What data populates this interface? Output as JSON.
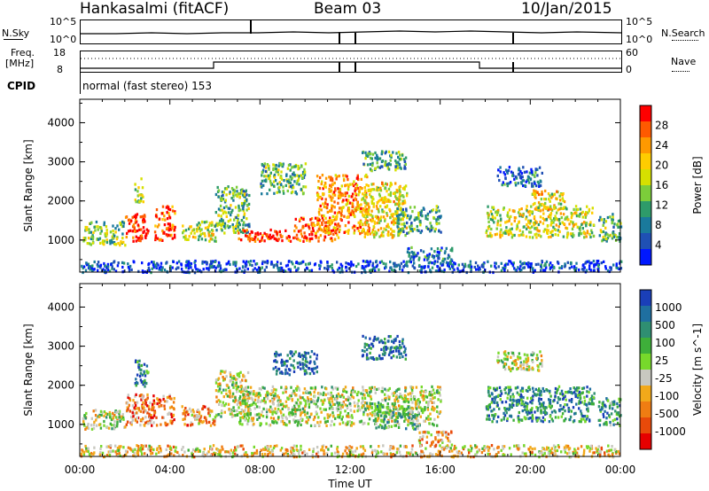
{
  "header": {
    "station": "Hankasalmi (fitACF)",
    "beam": "Beam 03",
    "date": "10/Jan/2015"
  },
  "status_panels": {
    "nsky_label": "N.Sky",
    "nsearch_label": "N.Search",
    "freq_label_1": "Freq.",
    "freq_label_2": "[MHz]",
    "nave_label": "Nave",
    "cpid_label": "CPID",
    "cpid_value": "normal (fast stereo) 153",
    "noise_ticks_left": [
      "10^5",
      "10^0"
    ],
    "noise_ticks_right": [
      "10^5",
      "10^0"
    ],
    "freq_ticks": [
      "18",
      "8"
    ],
    "nave_ticks": [
      "60",
      "0"
    ]
  },
  "chart_data": [
    {
      "type": "heatmap",
      "name": "power",
      "ylabel": "Slant Range [km]",
      "yticks": [
        "1000",
        "2000",
        "3000",
        "4000"
      ],
      "ylim": [
        180,
        4600
      ],
      "xlim": [
        0,
        24
      ],
      "colorbar": {
        "label": "Power [dB]",
        "ticks": [
          "28",
          "24",
          "20",
          "16",
          "12",
          "8",
          "4"
        ],
        "colors": [
          "#ff0000",
          "#ff5a00",
          "#ff9900",
          "#ffcc00",
          "#d6e000",
          "#7ccd3a",
          "#2e9b6a",
          "#1a7a9c",
          "#1f50b4",
          "#0018ff"
        ]
      },
      "scatter_bands": [
        {
          "t0": 0.1,
          "t1": 2.0,
          "r0": 900,
          "r1": 1500,
          "level": 0.45
        },
        {
          "t0": 2.0,
          "t1": 3.0,
          "r0": 1000,
          "r1": 1700,
          "level": 0.95
        },
        {
          "t0": 3.3,
          "t1": 4.2,
          "r0": 1000,
          "r1": 1900,
          "level": 0.9
        },
        {
          "t0": 2.4,
          "t1": 2.8,
          "r0": 2000,
          "r1": 2600,
          "level": 0.5
        },
        {
          "t0": 4.5,
          "t1": 6.0,
          "r0": 1000,
          "r1": 1500,
          "level": 0.55
        },
        {
          "t0": 6.0,
          "t1": 7.5,
          "r0": 1200,
          "r1": 2400,
          "level": 0.4
        },
        {
          "t0": 7.0,
          "t1": 9.5,
          "r0": 1000,
          "r1": 1300,
          "level": 0.9
        },
        {
          "t0": 8.0,
          "t1": 10.0,
          "r0": 2200,
          "r1": 3000,
          "level": 0.4
        },
        {
          "t0": 9.5,
          "t1": 11.5,
          "r0": 1000,
          "r1": 1600,
          "level": 0.85
        },
        {
          "t0": 10.5,
          "t1": 12.8,
          "r0": 1200,
          "r1": 2700,
          "level": 0.75
        },
        {
          "t0": 12.5,
          "t1": 14.5,
          "r0": 1100,
          "r1": 2500,
          "level": 0.6
        },
        {
          "t0": 12.5,
          "t1": 14.5,
          "r0": 2800,
          "r1": 3300,
          "level": 0.35
        },
        {
          "t0": 14.0,
          "t1": 16.0,
          "r0": 1200,
          "r1": 1900,
          "level": 0.35
        },
        {
          "t0": 14.5,
          "t1": 16.5,
          "r0": 500,
          "r1": 850,
          "level": 0.25
        },
        {
          "t0": 18.0,
          "t1": 22.8,
          "r0": 1100,
          "r1": 1900,
          "level": 0.55
        },
        {
          "t0": 20.0,
          "t1": 21.5,
          "r0": 1800,
          "r1": 2300,
          "level": 0.6
        },
        {
          "t0": 18.5,
          "t1": 20.5,
          "r0": 2400,
          "r1": 2900,
          "level": 0.2
        },
        {
          "t0": 23.0,
          "t1": 24.0,
          "r0": 1000,
          "r1": 1700,
          "level": 0.4
        },
        {
          "t0": 0.0,
          "t1": 24.0,
          "r0": 200,
          "r1": 500,
          "level": 0.15
        }
      ]
    },
    {
      "type": "heatmap",
      "name": "velocity",
      "ylabel": "Slant Range [km]",
      "yticks": [
        "1000",
        "2000",
        "3000",
        "4000"
      ],
      "ylim": [
        180,
        4600
      ],
      "xlim": [
        0,
        24
      ],
      "xlabel": "Time UT",
      "xticks": [
        "00:00",
        "04:00",
        "08:00",
        "12:00",
        "16:00",
        "20:00",
        "00:00"
      ],
      "colorbar": {
        "label": "Velocity [m s^-1]",
        "ticks": [
          "1000",
          "500",
          "100",
          "25",
          "-25",
          "-100",
          "-500",
          "-1000"
        ],
        "colors": [
          "#1a3fb8",
          "#1f6fa0",
          "#2f8f72",
          "#3eaf3a",
          "#77d92b",
          "#c8c8c0",
          "#f2a91a",
          "#f07d12",
          "#e84a0a",
          "#e60000"
        ]
      },
      "scatter_bands": [
        {
          "t0": 0.1,
          "t1": 2.0,
          "r0": 900,
          "r1": 1400,
          "level": 0.5
        },
        {
          "t0": 2.0,
          "t1": 4.2,
          "r0": 1000,
          "r1": 1800,
          "level": 0.25
        },
        {
          "t0": 2.4,
          "t1": 3.0,
          "r0": 2000,
          "r1": 2700,
          "level": 0.8
        },
        {
          "t0": 4.5,
          "t1": 6.0,
          "r0": 1000,
          "r1": 1500,
          "level": 0.3
        },
        {
          "t0": 6.0,
          "t1": 7.5,
          "r0": 1200,
          "r1": 2400,
          "level": 0.5
        },
        {
          "t0": 7.0,
          "t1": 16.0,
          "r0": 1000,
          "r1": 2000,
          "level": 0.5
        },
        {
          "t0": 8.5,
          "t1": 10.5,
          "r0": 2300,
          "r1": 2900,
          "level": 0.9
        },
        {
          "t0": 12.5,
          "t1": 14.5,
          "r0": 2700,
          "r1": 3300,
          "level": 0.85
        },
        {
          "t0": 13.0,
          "t1": 15.0,
          "r0": 900,
          "r1": 1500,
          "level": 0.65
        },
        {
          "t0": 15.0,
          "t1": 16.5,
          "r0": 500,
          "r1": 850,
          "level": 0.35
        },
        {
          "t0": 18.0,
          "t1": 22.8,
          "r0": 1100,
          "r1": 2000,
          "level": 0.75
        },
        {
          "t0": 18.5,
          "t1": 20.5,
          "r0": 2400,
          "r1": 2900,
          "level": 0.5
        },
        {
          "t0": 23.0,
          "t1": 24.0,
          "r0": 1000,
          "r1": 1700,
          "level": 0.7
        },
        {
          "t0": 0.0,
          "t1": 24.0,
          "r0": 200,
          "r1": 500,
          "level": 0.4
        }
      ]
    }
  ]
}
